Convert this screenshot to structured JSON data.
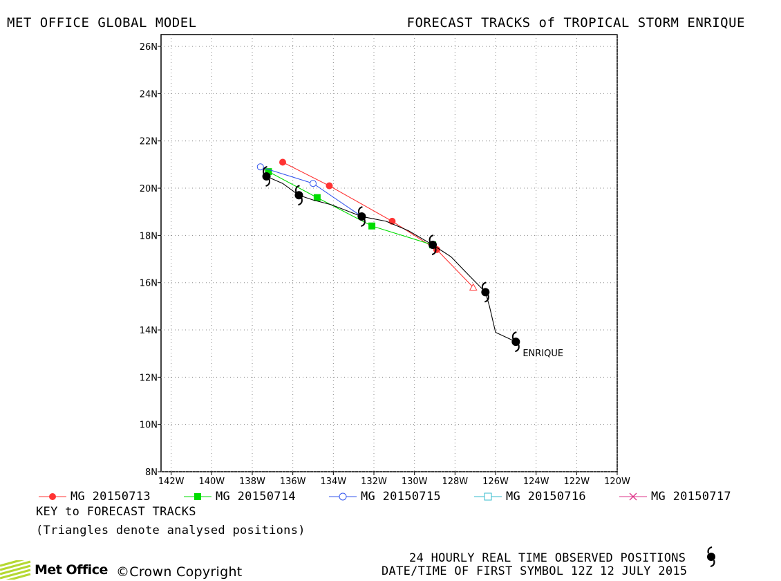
{
  "header": {
    "left": "MET OFFICE GLOBAL MODEL",
    "right": "FORECAST TRACKS of TROPICAL STORM ENRIQUE"
  },
  "map": {
    "lon_range": [
      -142.5,
      -120
    ],
    "lat_range": [
      8,
      26.5
    ],
    "x_ticks": [
      "142W",
      "140W",
      "138W",
      "136W",
      "134W",
      "132W",
      "130W",
      "128W",
      "126W",
      "124W",
      "122W",
      "120W"
    ],
    "x_tick_values": [
      -142,
      -140,
      -138,
      -136,
      -134,
      -132,
      -130,
      -128,
      -126,
      -124,
      -122,
      -120
    ],
    "y_ticks": [
      "8N",
      "10N",
      "12N",
      "14N",
      "16N",
      "18N",
      "20N",
      "22N",
      "24N",
      "26N"
    ],
    "y_tick_values": [
      8,
      10,
      12,
      14,
      16,
      18,
      20,
      22,
      24,
      26
    ],
    "grid": "dotted",
    "storm_label": "ENRIQUE"
  },
  "chart_data": {
    "type": "scatter",
    "xlabel": "",
    "ylabel": "",
    "observed": {
      "color": "#000000",
      "points": [
        [
          -125.0,
          13.5
        ],
        [
          -126.5,
          15.6
        ],
        [
          -129.1,
          17.6
        ],
        [
          -132.6,
          18.8
        ],
        [
          -135.7,
          19.7
        ],
        [
          -137.3,
          20.5
        ]
      ],
      "track": [
        [
          -125.0,
          13.5
        ],
        [
          -126.0,
          13.9
        ],
        [
          -126.3,
          15.0
        ],
        [
          -126.5,
          15.6
        ],
        [
          -127.3,
          16.3
        ],
        [
          -128.2,
          17.1
        ],
        [
          -129.1,
          17.6
        ],
        [
          -130.3,
          18.2
        ],
        [
          -131.4,
          18.6
        ],
        [
          -132.6,
          18.8
        ],
        [
          -134.1,
          19.3
        ],
        [
          -135.0,
          19.5
        ],
        [
          -135.7,
          19.7
        ],
        [
          -136.5,
          20.2
        ],
        [
          -137.3,
          20.5
        ]
      ]
    },
    "series": [
      {
        "name": "MG 20150713",
        "color": "#ff3333",
        "marker": "circle-filled",
        "analysed": [
          -127.1,
          15.8
        ],
        "points": [
          [
            -128.9,
            17.4
          ],
          [
            -131.1,
            18.6
          ],
          [
            -134.2,
            20.1
          ],
          [
            -136.5,
            21.1
          ]
        ]
      },
      {
        "name": "MG 20150714",
        "color": "#00dd00",
        "marker": "square-filled",
        "points": [
          [
            -129.1,
            17.6
          ],
          [
            -132.1,
            18.4
          ],
          [
            -134.8,
            19.6
          ],
          [
            -137.2,
            20.7
          ]
        ]
      },
      {
        "name": "MG 20150715",
        "color": "#3355ee",
        "marker": "circle-open",
        "points": [
          [
            -132.6,
            18.8
          ],
          [
            -135.0,
            20.2
          ],
          [
            -137.6,
            20.9
          ]
        ]
      },
      {
        "name": "MG 20150716",
        "color": "#33bbcc",
        "marker": "square-open",
        "points": []
      },
      {
        "name": "MG 20150717",
        "color": "#dd3388",
        "marker": "cross",
        "points": []
      }
    ]
  },
  "legend": {
    "items": [
      "MG 20150713",
      "MG 20150714",
      "MG 20150715",
      "MG 20150716",
      "MG 20150717"
    ]
  },
  "key": {
    "title": "KEY to FORECAST TRACKS",
    "note": "(Triangles denote analysed positions)"
  },
  "footer": {
    "observed": "24 HOURLY REAL TIME OBSERVED POSITIONS",
    "dtg": "DATE/TIME OF FIRST SYMBOL 12Z 12 JULY 2015",
    "brand": "Met Office",
    "copyright": "©Crown Copyright"
  }
}
